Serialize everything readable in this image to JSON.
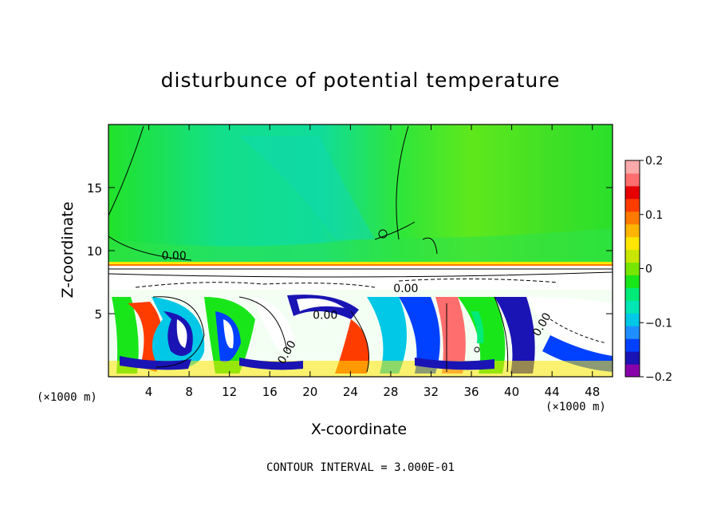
{
  "chart_data": {
    "type": "heatmap",
    "title": "disturbunce of potential temperature",
    "xlabel": "X-coordinate",
    "ylabel": "Z-coordinate",
    "x_unit_label": "(×1000 m)",
    "y_unit_label": "(×1000 m)",
    "xlim": [
      0,
      50
    ],
    "ylim": [
      0,
      20
    ],
    "x_ticks": [
      "4",
      "8",
      "12",
      "16",
      "20",
      "24",
      "28",
      "32",
      "36",
      "40",
      "44",
      "48"
    ],
    "y_ticks": [
      "5",
      "10",
      "15"
    ],
    "colorbar": {
      "min": -0.2,
      "max": 0.2,
      "tick_labels": [
        "0.2",
        "0.1",
        "0",
        "−0.1",
        "−0.2"
      ],
      "colors": [
        "#8800aa",
        "#1a14b4",
        "#0040ff",
        "#1f8fff",
        "#00c8e6",
        "#00e6b4",
        "#00eb78",
        "#19e619",
        "#78e600",
        "#c8e600",
        "#ffe600",
        "#ffb400",
        "#ff7a00",
        "#ff3c00",
        "#e60000",
        "#ff6e6e",
        "#ffaaaa"
      ]
    },
    "contour_labels": [
      "0.00",
      "0.00",
      "0.00",
      "0.00",
      "0.00"
    ],
    "contour_interval_text": "CONTOUR INTERVAL = 3.000E-01",
    "grid": false
  }
}
